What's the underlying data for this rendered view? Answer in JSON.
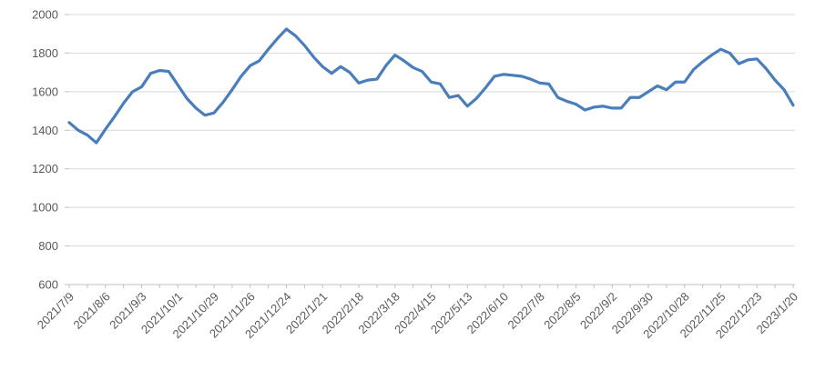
{
  "chart_data": {
    "type": "line",
    "title": "",
    "legend": "none",
    "grid": "horizontal",
    "ylim": [
      600,
      2000
    ],
    "y_tick_step": 200,
    "y_tick_labels": [
      "600",
      "800",
      "1000",
      "1200",
      "1400",
      "1600",
      "1800",
      "2000"
    ],
    "x_labels": [
      "2021/7/9",
      "2021/8/6",
      "2021/9/3",
      "2021/10/1",
      "2021/10/29",
      "2021/11/26",
      "2021/12/24",
      "2022/1/21",
      "2022/2/18",
      "2022/3/18",
      "2022/4/15",
      "2022/5/13",
      "2022/6/10",
      "2022/7/8",
      "2022/8/5",
      "2022/9/2",
      "2022/9/30",
      "2022/10/28",
      "2022/11/25",
      "2022/12/23",
      "2023/1/20"
    ],
    "x_label_rotation_deg": -45,
    "label_every_n_points": 4,
    "tick_every_n_points": 2,
    "points_per_week": 1,
    "series": [
      {
        "name": "",
        "values": [
          1440,
          1400,
          1375,
          1335,
          1405,
          1470,
          1540,
          1600,
          1625,
          1695,
          1710,
          1705,
          1635,
          1565,
          1515,
          1478,
          1490,
          1545,
          1610,
          1680,
          1735,
          1760,
          1820,
          1875,
          1925,
          1890,
          1840,
          1780,
          1730,
          1695,
          1730,
          1700,
          1645,
          1660,
          1665,
          1735,
          1790,
          1760,
          1725,
          1705,
          1650,
          1640,
          1570,
          1580,
          1525,
          1565,
          1620,
          1680,
          1690,
          1685,
          1680,
          1665,
          1645,
          1640,
          1570,
          1550,
          1535,
          1505,
          1520,
          1525,
          1515,
          1515,
          1570,
          1570,
          1600,
          1630,
          1610,
          1650,
          1650,
          1715,
          1755,
          1790,
          1820,
          1800,
          1745,
          1765,
          1770,
          1720,
          1660,
          1610,
          1530
        ]
      }
    ],
    "colors": {
      "line": "#4A7EBB",
      "gridline": "#D9D9D9",
      "axis": "#BFBFBF",
      "tick": "#BFBFBF",
      "tick_label": "#595959",
      "background": "#FFFFFF"
    }
  }
}
